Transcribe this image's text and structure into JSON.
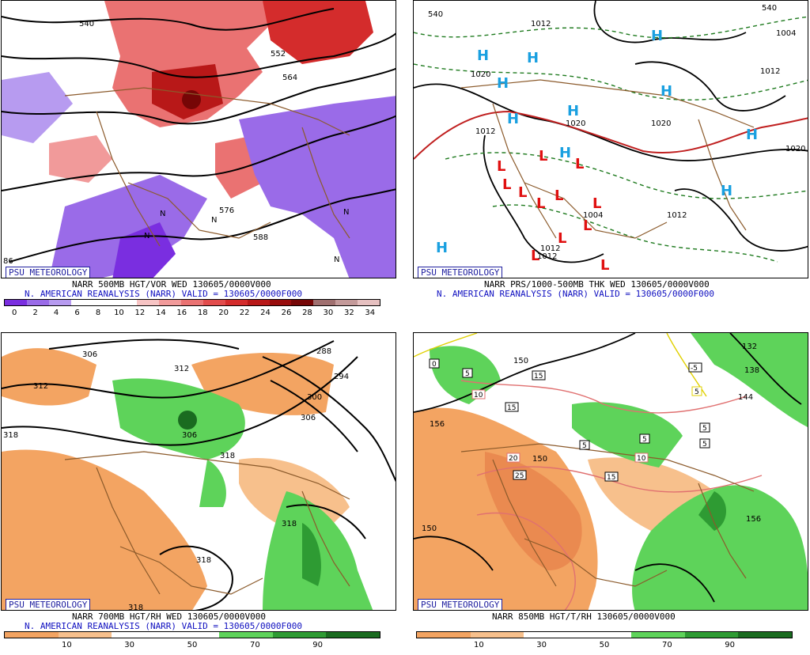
{
  "panels": [
    {
      "id": "p500",
      "title_line1": "NARR 500MB HGT/VOR WED 130605/0000V000",
      "title_line2": "N. AMERICAN REANALYSIS (NARR) VALID = 130605/0000F000",
      "logo": "PSU METEOROLOGY",
      "colorbar_ticks": [
        "0",
        "2",
        "4",
        "6",
        "8",
        "10",
        "12",
        "14",
        "16",
        "18",
        "20",
        "22",
        "24",
        "26",
        "28",
        "30",
        "32",
        "34"
      ],
      "colorbar_colors": [
        "#7a2ee0",
        "#9a6be8",
        "#b79bf0",
        "#ffffff",
        "#ffffff",
        "#ffffff",
        "#f7c4c4",
        "#f19a9a",
        "#ea7272",
        "#e24c4c",
        "#d42c2c",
        "#b81818",
        "#980c0c",
        "#760606",
        "#a07070",
        "#c49a9a",
        "#e6c0c0"
      ],
      "contour_labels": [
        "540",
        "552",
        "564",
        "576",
        "588",
        "N",
        "N",
        "N",
        "N",
        "N",
        "86"
      ]
    },
    {
      "id": "psfc",
      "title_line1": "NARR PRS/1000-500MB THK WED 130605/0000V000",
      "title_line2": "N. AMERICAN REANALYSIS (NARR) VALID = 130605/0000F000",
      "logo": "PSU METEOROLOGY",
      "contour_labels": [
        "540",
        "1012",
        "1004",
        "1020",
        "1012",
        "1012",
        "1020",
        "1020",
        "1004",
        "1012",
        "1012",
        "1012",
        "1020",
        "540"
      ],
      "high_symbol": "H",
      "low_symbol": "L"
    },
    {
      "id": "p700",
      "title_line1": "NARR 700MB HGT/RH WED 130605/0000V000",
      "title_line2": "N. AMERICAN REANALYSIS (NARR) VALID = 130605/0000F000",
      "logo": "PSU METEOROLOGY",
      "colorbar_ticks": [
        "10",
        "30",
        "50",
        "70",
        "90"
      ],
      "colorbar_colors": [
        "#f3a462",
        "#f7c08c",
        "#ffffff",
        "#ffffff",
        "#5ed35a",
        "#2e9b33",
        "#1a6b20"
      ],
      "contour_labels": [
        "306",
        "312",
        "288",
        "294",
        "300",
        "306",
        "312",
        "318",
        "306",
        "318",
        "318",
        "318",
        "318"
      ]
    },
    {
      "id": "p850",
      "title_line1": "NARR 850MB HGT/T/RH 130605/0000V000",
      "logo": "PSU METEOROLOGY",
      "colorbar_ticks": [
        "10",
        "30",
        "50",
        "70",
        "90"
      ],
      "colorbar_colors": [
        "#f3a462",
        "#f7c08c",
        "#ffffff",
        "#ffffff",
        "#5ed35a",
        "#2e9b33",
        "#1a6b20"
      ],
      "contour_labels": [
        "150",
        "156",
        "150",
        "156",
        "132",
        "138",
        "144",
        "150"
      ],
      "temp_boxes": [
        "0",
        "5",
        "10",
        "15",
        "15",
        "20",
        "25",
        "5",
        "5",
        "10",
        "15",
        "5",
        "-5",
        "5",
        "5"
      ]
    }
  ]
}
